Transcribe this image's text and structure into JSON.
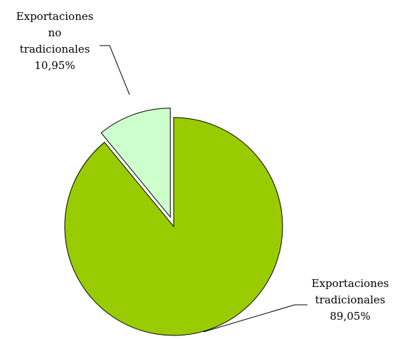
{
  "chart_data": {
    "type": "pie",
    "categories": [
      "Exportaciones tradicionales",
      "Exportaciones no tradicionales"
    ],
    "values": [
      89.05,
      10.95
    ],
    "value_labels": [
      "89,05%",
      "10,95%"
    ],
    "label_lines": [
      [
        "Exportaciones",
        "tradicionales",
        "89,05%"
      ],
      [
        "Exportaciones",
        "no",
        "tradicionales",
        "10,95%"
      ]
    ],
    "colors": [
      "#99CC00",
      "#CCFFCC"
    ],
    "exploded": [
      false,
      true
    ],
    "start_angle": "12 o'clock",
    "direction": "clockwise",
    "legend": "none"
  }
}
